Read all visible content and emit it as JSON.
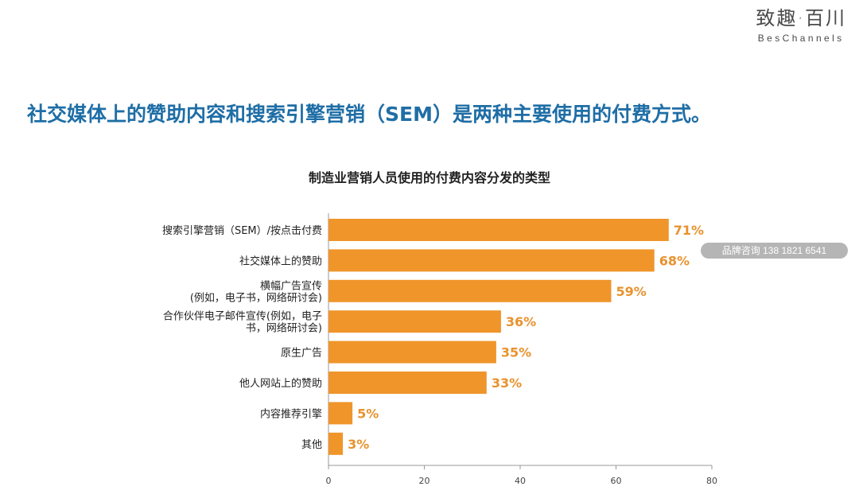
{
  "brand": {
    "name_cn": "致趣·百川",
    "name_en": "BesChannels"
  },
  "headline": "社交媒体上的赞助内容和搜索引擎营销（SEM）是两种主要使用的付费方式。",
  "watermark": "品牌咨询 138 1821 6541",
  "colors": {
    "bar": "#ef952a",
    "label": "#e8922e",
    "headline": "#1f6ea6"
  },
  "chart_data": {
    "type": "bar",
    "orientation": "horizontal",
    "title": "制造业营销人员使用的付费内容分发的类型",
    "categories": [
      [
        "搜索引擎营销（SEM）/按点击付费"
      ],
      [
        "社交媒体上的赞助"
      ],
      [
        "横幅广告宣传",
        "(例如，电子书，网络研讨会)"
      ],
      [
        "合作伙伴电子邮件宣传(例如，电子",
        "书，网络研讨会)"
      ],
      [
        "原生广告"
      ],
      [
        "他人网站上的赞助"
      ],
      [
        "内容推荐引擎"
      ],
      [
        "其他"
      ]
    ],
    "values": [
      71,
      68,
      59,
      36,
      35,
      33,
      5,
      3
    ],
    "value_labels": [
      "71%",
      "68%",
      "59%",
      "36%",
      "35%",
      "33%",
      "5%",
      "3%"
    ],
    "xlim": [
      0,
      80
    ],
    "xticks": [
      "0",
      "20",
      "40",
      "60",
      "80"
    ],
    "grid": false
  }
}
